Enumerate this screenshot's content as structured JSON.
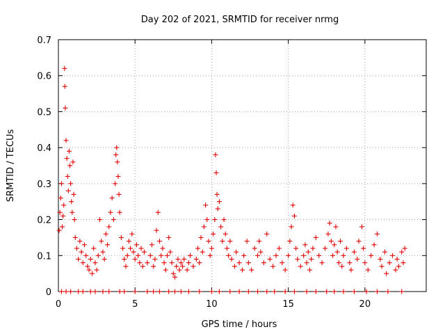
{
  "chart_data": {
    "type": "scatter",
    "title": "Day 202 of 2021, SRMTID for receiver nrmg",
    "xlabel": "GPS time / hours",
    "ylabel": "SRMTID / TECUs",
    "xlim": [
      0,
      24
    ],
    "ylim": [
      0,
      0.7
    ],
    "xticks": [
      0,
      5,
      10,
      15,
      20
    ],
    "yticks": [
      0,
      0.1,
      0.2,
      0.3,
      0.4,
      0.5,
      0.6,
      0.7
    ],
    "xtick_labels": [
      "0",
      "5",
      "10",
      "15",
      "20"
    ],
    "ytick_labels": [
      "0",
      "0.1",
      "0.2",
      "0.3",
      "0.4",
      "0.5",
      "0.6",
      "0.7"
    ],
    "grid": true,
    "marker": "+",
    "color": "#e00000",
    "series": [
      {
        "name": "SRMTID",
        "points": [
          [
            0.05,
            0.17
          ],
          [
            0.1,
            0.22
          ],
          [
            0.15,
            0.26
          ],
          [
            0.2,
            0.3
          ],
          [
            0.25,
            0.18
          ],
          [
            0.3,
            0.21
          ],
          [
            0.35,
            0.24
          ],
          [
            0.4,
            0.62
          ],
          [
            0.42,
            0.57
          ],
          [
            0.45,
            0.51
          ],
          [
            0.5,
            0.42
          ],
          [
            0.55,
            0.37
          ],
          [
            0.6,
            0.32
          ],
          [
            0.65,
            0.28
          ],
          [
            0.7,
            0.39
          ],
          [
            0.75,
            0.35
          ],
          [
            0.8,
            0.3
          ],
          [
            0.85,
            0.25
          ],
          [
            0.9,
            0.22
          ],
          [
            0.95,
            0.36
          ],
          [
            1.0,
            0.27
          ],
          [
            1.05,
            0.2
          ],
          [
            1.1,
            0.15
          ],
          [
            1.2,
            0.12
          ],
          [
            1.3,
            0.09
          ],
          [
            1.4,
            0.14
          ],
          [
            1.5,
            0.11
          ],
          [
            1.6,
            0.08
          ],
          [
            1.7,
            0.13
          ],
          [
            1.8,
            0.1
          ],
          [
            1.9,
            0.07
          ],
          [
            2.0,
            0.06
          ],
          [
            2.1,
            0.09
          ],
          [
            2.2,
            0.05
          ],
          [
            2.3,
            0.12
          ],
          [
            2.4,
            0.08
          ],
          [
            2.5,
            0.06
          ],
          [
            2.6,
            0.1
          ],
          [
            2.7,
            0.2
          ],
          [
            2.8,
            0.14
          ],
          [
            2.9,
            0.11
          ],
          [
            3.0,
            0.09
          ],
          [
            3.1,
            0.16
          ],
          [
            3.2,
            0.13
          ],
          [
            3.3,
            0.18
          ],
          [
            3.4,
            0.22
          ],
          [
            3.5,
            0.26
          ],
          [
            3.6,
            0.2
          ],
          [
            3.7,
            0.3
          ],
          [
            3.75,
            0.38
          ],
          [
            3.8,
            0.4
          ],
          [
            3.85,
            0.36
          ],
          [
            3.9,
            0.32
          ],
          [
            3.95,
            0.27
          ],
          [
            4.0,
            0.22
          ],
          [
            4.1,
            0.15
          ],
          [
            4.2,
            0.12
          ],
          [
            4.3,
            0.09
          ],
          [
            4.4,
            0.07
          ],
          [
            4.5,
            0.1
          ],
          [
            4.6,
            0.14
          ],
          [
            4.7,
            0.12
          ],
          [
            4.8,
            0.16
          ],
          [
            4.9,
            0.11
          ],
          [
            5.0,
            0.09
          ],
          [
            5.1,
            0.13
          ],
          [
            5.2,
            0.1
          ],
          [
            5.3,
            0.08
          ],
          [
            5.4,
            0.12
          ],
          [
            5.5,
            0.07
          ],
          [
            5.6,
            0.11
          ],
          [
            5.8,
            0.08
          ],
          [
            6.0,
            0.1
          ],
          [
            6.1,
            0.13
          ],
          [
            6.2,
            0.07
          ],
          [
            6.3,
            0.09
          ],
          [
            6.4,
            0.17
          ],
          [
            6.5,
            0.22
          ],
          [
            6.6,
            0.14
          ],
          [
            6.7,
            0.1
          ],
          [
            6.8,
            0.12
          ],
          [
            6.9,
            0.08
          ],
          [
            7.0,
            0.06
          ],
          [
            7.1,
            0.1
          ],
          [
            7.2,
            0.15
          ],
          [
            7.3,
            0.11
          ],
          [
            7.4,
            0.08
          ],
          [
            7.5,
            0.05
          ],
          [
            7.6,
            0.04
          ],
          [
            7.7,
            0.07
          ],
          [
            7.8,
            0.09
          ],
          [
            7.9,
            0.06
          ],
          [
            8.0,
            0.08
          ],
          [
            8.1,
            0.07
          ],
          [
            8.2,
            0.09
          ],
          [
            8.4,
            0.06
          ],
          [
            8.5,
            0.08
          ],
          [
            8.6,
            0.1
          ],
          [
            8.8,
            0.07
          ],
          [
            9.0,
            0.09
          ],
          [
            9.1,
            0.12
          ],
          [
            9.2,
            0.08
          ],
          [
            9.3,
            0.15
          ],
          [
            9.4,
            0.11
          ],
          [
            9.5,
            0.18
          ],
          [
            9.6,
            0.24
          ],
          [
            9.7,
            0.2
          ],
          [
            9.8,
            0.14
          ],
          [
            9.9,
            0.1
          ],
          [
            10.0,
            0.12
          ],
          [
            10.1,
            0.16
          ],
          [
            10.2,
            0.2
          ],
          [
            10.25,
            0.38
          ],
          [
            10.3,
            0.33
          ],
          [
            10.35,
            0.27
          ],
          [
            10.4,
            0.23
          ],
          [
            10.5,
            0.25
          ],
          [
            10.6,
            0.18
          ],
          [
            10.7,
            0.14
          ],
          [
            10.8,
            0.2
          ],
          [
            10.9,
            0.16
          ],
          [
            11.0,
            0.12
          ],
          [
            11.1,
            0.1
          ],
          [
            11.2,
            0.14
          ],
          [
            11.3,
            0.09
          ],
          [
            11.5,
            0.07
          ],
          [
            11.6,
            0.11
          ],
          [
            11.8,
            0.08
          ],
          [
            12.0,
            0.06
          ],
          [
            12.1,
            0.1
          ],
          [
            12.3,
            0.14
          ],
          [
            12.4,
            0.08
          ],
          [
            12.6,
            0.06
          ],
          [
            12.8,
            0.12
          ],
          [
            13.0,
            0.1
          ],
          [
            13.1,
            0.14
          ],
          [
            13.2,
            0.11
          ],
          [
            13.4,
            0.08
          ],
          [
            13.6,
            0.16
          ],
          [
            13.8,
            0.09
          ],
          [
            14.0,
            0.07
          ],
          [
            14.2,
            0.1
          ],
          [
            14.4,
            0.12
          ],
          [
            14.6,
            0.08
          ],
          [
            14.8,
            0.06
          ],
          [
            15.0,
            0.1
          ],
          [
            15.1,
            0.14
          ],
          [
            15.2,
            0.18
          ],
          [
            15.3,
            0.24
          ],
          [
            15.4,
            0.21
          ],
          [
            15.5,
            0.12
          ],
          [
            15.6,
            0.09
          ],
          [
            15.8,
            0.07
          ],
          [
            16.0,
            0.1
          ],
          [
            16.1,
            0.13
          ],
          [
            16.2,
            0.08
          ],
          [
            16.3,
            0.11
          ],
          [
            16.4,
            0.06
          ],
          [
            16.5,
            0.09
          ],
          [
            16.6,
            0.12
          ],
          [
            16.8,
            0.15
          ],
          [
            17.0,
            0.1
          ],
          [
            17.2,
            0.08
          ],
          [
            17.4,
            0.12
          ],
          [
            17.6,
            0.16
          ],
          [
            17.7,
            0.19
          ],
          [
            17.8,
            0.14
          ],
          [
            17.9,
            0.1
          ],
          [
            18.0,
            0.13
          ],
          [
            18.1,
            0.18
          ],
          [
            18.2,
            0.11
          ],
          [
            18.3,
            0.08
          ],
          [
            18.4,
            0.14
          ],
          [
            18.5,
            0.07
          ],
          [
            18.6,
            0.1
          ],
          [
            18.8,
            0.12
          ],
          [
            19.0,
            0.08
          ],
          [
            19.1,
            0.06
          ],
          [
            19.3,
            0.11
          ],
          [
            19.5,
            0.09
          ],
          [
            19.6,
            0.14
          ],
          [
            19.8,
            0.18
          ],
          [
            19.9,
            0.12
          ],
          [
            20.0,
            0.08
          ],
          [
            20.2,
            0.06
          ],
          [
            20.4,
            0.1
          ],
          [
            20.6,
            0.13
          ],
          [
            20.8,
            0.16
          ],
          [
            21.0,
            0.09
          ],
          [
            21.1,
            0.07
          ],
          [
            21.3,
            0.11
          ],
          [
            21.4,
            0.05
          ],
          [
            21.6,
            0.08
          ],
          [
            21.8,
            0.1
          ],
          [
            22.0,
            0.06
          ],
          [
            22.1,
            0.09
          ],
          [
            22.2,
            0.07
          ],
          [
            22.4,
            0.11
          ],
          [
            22.5,
            0.08
          ],
          [
            22.6,
            0.12
          ],
          [
            0.2,
            0
          ],
          [
            0.5,
            0
          ],
          [
            0.8,
            0
          ],
          [
            1.3,
            0
          ],
          [
            1.6,
            0
          ],
          [
            2.1,
            0
          ],
          [
            2.4,
            0
          ],
          [
            2.9,
            0
          ],
          [
            3.3,
            0
          ],
          [
            4.0,
            0
          ],
          [
            4.3,
            0
          ],
          [
            5.0,
            0
          ],
          [
            5.8,
            0
          ],
          [
            6.2,
            0
          ],
          [
            6.6,
            0
          ],
          [
            7.2,
            0
          ],
          [
            7.6,
            0
          ],
          [
            8.0,
            0
          ],
          [
            8.5,
            0
          ],
          [
            9.2,
            0
          ],
          [
            10.0,
            0
          ],
          [
            10.5,
            0
          ],
          [
            11.2,
            0
          ],
          [
            11.8,
            0
          ],
          [
            12.4,
            0
          ],
          [
            13.0,
            0
          ],
          [
            13.6,
            0
          ],
          [
            14.1,
            0
          ],
          [
            14.8,
            0
          ],
          [
            15.4,
            0
          ],
          [
            16.2,
            0
          ],
          [
            16.8,
            0
          ],
          [
            17.5,
            0
          ],
          [
            18.0,
            0
          ],
          [
            18.6,
            0
          ],
          [
            19.3,
            0
          ],
          [
            20.1,
            0
          ],
          [
            20.8,
            0
          ],
          [
            21.5,
            0
          ],
          [
            22.4,
            0
          ]
        ]
      }
    ]
  }
}
